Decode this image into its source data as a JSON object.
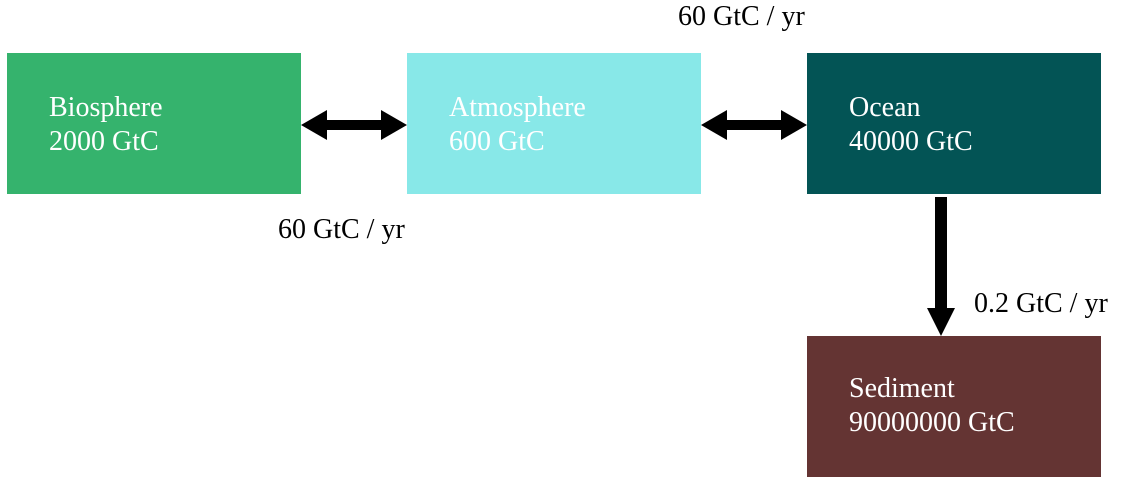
{
  "colors": {
    "biosphere": "#35b36d",
    "atmosphere": "#88e8e8",
    "ocean": "#035455",
    "sediment": "#643433",
    "arrow": "#000000"
  },
  "reservoirs": {
    "biosphere": {
      "name": "Biosphere",
      "amount": "2000 GtC"
    },
    "atmosphere": {
      "name": "Atmosphere",
      "amount": "600 GtC"
    },
    "ocean": {
      "name": "Ocean",
      "amount": "40000 GtC"
    },
    "sediment": {
      "name": "Sediment",
      "amount": "90000000 GtC"
    }
  },
  "fluxes": {
    "ocean_atmosphere": "60 GtC / yr",
    "biosphere_atmosphere": "60 GtC / yr",
    "ocean_sediment": "0.2 GtC / yr"
  }
}
